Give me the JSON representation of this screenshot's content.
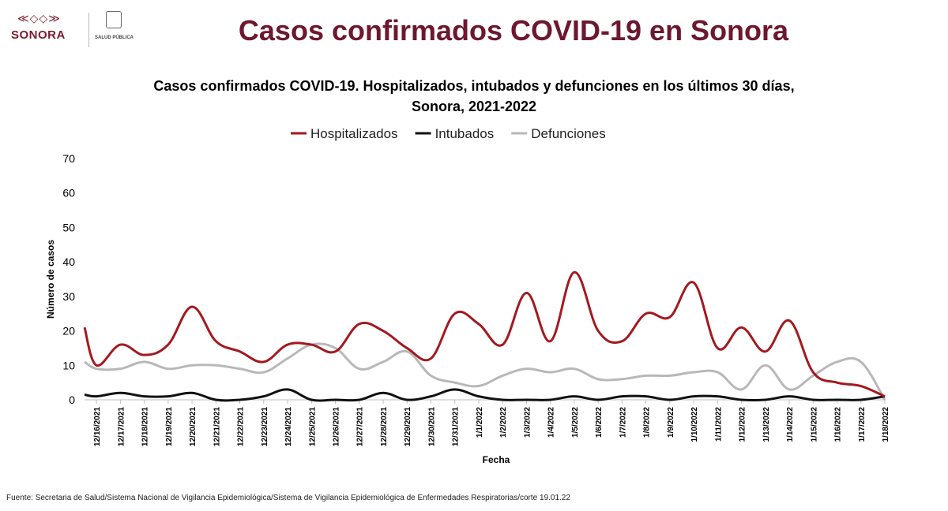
{
  "header": {
    "title": "Casos confirmados COVID-19 en Sonora",
    "logo_sonora": "SONORA",
    "logo_salud": "SALUD PÚBLICA"
  },
  "footer": {
    "source": "Fuente: Secretaria de Salud/Sistema Nacional de Vigilancia Epidemiológica/Sistema de Vigilancia Epidemiológica de Enfermedades Respiratorias/corte 19.01.22"
  },
  "chart_data": {
    "type": "line",
    "title_line1": "Casos confirmados COVID-19. Hospitalizados, intubados y defunciones en los últimos 30 días,",
    "title_line2": "Sonora, 2021-2022",
    "xlabel": "Fecha",
    "ylabel": "Número de casos",
    "ylim": [
      0,
      70
    ],
    "yticks": [
      "0",
      "10",
      "20",
      "30",
      "40",
      "50",
      "60",
      "70"
    ],
    "grid": false,
    "legend_position": "top-center",
    "categories": [
      "12/16/2021",
      "12/17/2021",
      "12/18/2021",
      "12/19/2021",
      "12/20/2021",
      "12/21/2021",
      "12/22/2021",
      "12/23/2021",
      "12/24/2021",
      "12/25/2021",
      "12/26/2021",
      "12/27/2021",
      "12/28/2021",
      "12/29/2021",
      "12/30/2021",
      "12/31/2021",
      "1/1/2022",
      "1/2/2022",
      "1/3/2022",
      "1/4/2022",
      "1/5/2022",
      "1/6/2022",
      "1/7/2022",
      "1/8/2022",
      "1/9/2022",
      "1/10/2022",
      "1/11/2022",
      "1/12/2022",
      "1/13/2022",
      "1/14/2022",
      "1/15/2022",
      "1/16/2022",
      "1/17/2022",
      "1/18/2022"
    ],
    "x_start_value": 21,
    "series": [
      {
        "name": "Hospitalizados",
        "color": "#a3191f",
        "values": [
          10,
          16,
          13,
          16,
          27,
          17,
          14,
          11,
          16,
          16,
          14,
          22,
          20,
          15,
          12,
          25,
          22,
          16,
          31,
          17,
          37,
          20,
          17,
          25,
          24,
          34,
          15,
          21,
          14,
          23,
          8,
          5,
          4,
          1
        ]
      },
      {
        "name": "Intubados",
        "color": "#111111",
        "values": [
          1,
          2,
          1,
          1,
          2,
          0,
          0,
          1,
          3,
          0,
          0,
          0,
          2,
          0,
          1,
          3,
          1,
          0,
          0,
          0,
          1,
          0,
          1,
          1,
          0,
          1,
          1,
          0,
          0,
          1,
          0,
          0,
          0,
          1
        ]
      },
      {
        "name": "Defunciones",
        "color": "#b8b8b8",
        "values": [
          9,
          9,
          11,
          9,
          10,
          10,
          9,
          8,
          12,
          16,
          15,
          9,
          11,
          14,
          7,
          5,
          4,
          7,
          9,
          8,
          9,
          6,
          6,
          7,
          7,
          8,
          8,
          3,
          10,
          3,
          7,
          11,
          11,
          0
        ]
      }
    ],
    "x_start_values": {
      "Hospitalizados": 21,
      "Intubados": 1.5,
      "Defunciones": 11
    }
  }
}
